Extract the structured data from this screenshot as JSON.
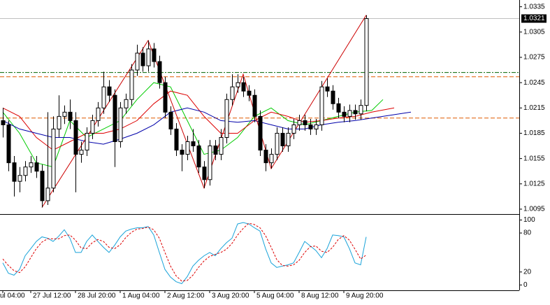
{
  "chart_data": {
    "type": "candlestick",
    "categories": [
      "ul 04:00",
      null,
      null,
      null,
      null,
      "27 Jul 12:00",
      null,
      null,
      null,
      null,
      null,
      null,
      null,
      "28 Jul 20:00",
      null,
      null,
      null,
      null,
      null,
      null,
      null,
      "1 Aug 04:00",
      null,
      null,
      null,
      null,
      null,
      null,
      null,
      "2 Aug 12:00",
      null,
      null,
      null,
      null,
      null,
      null,
      null,
      "3 Aug 20:00",
      null,
      null,
      null,
      null,
      null,
      null,
      null,
      "5 Aug 04:00",
      null,
      null,
      null,
      null,
      null,
      null,
      null,
      "8 Aug 12:00",
      null,
      null,
      null,
      null,
      null,
      null,
      null,
      "9 Aug 20:00",
      null,
      null,
      null,
      null
    ],
    "open": [
      1.02,
      1.0195,
      1.015,
      1.0128,
      1.0135,
      1.0145,
      1.015,
      1.014,
      1.0105,
      1.012,
      1.019,
      1.0205,
      1.021,
      1.02,
      1.016,
      1.0165,
      1.0185,
      1.02,
      1.0215,
      1.024,
      1.023,
      1.0175,
      1.0215,
      1.0225,
      1.026,
      1.028,
      1.0265,
      1.0285,
      1.027,
      1.0245,
      1.021,
      1.019,
      1.0165,
      1.016,
      1.0175,
      1.017,
      1.0145,
      1.013,
      1.017,
      1.016,
      1.018,
      1.0225,
      1.024,
      1.0245,
      1.0235,
      1.023,
      1.0205,
      1.0165,
      1.015,
      1.016,
      1.0185,
      1.017,
      1.0185,
      1.0195,
      1.02,
      1.0195,
      1.019,
      1.0195,
      1.024,
      1.0235,
      1.022,
      1.021,
      1.0205,
      1.0212,
      1.0208,
      1.0218
    ],
    "high": [
      1.0215,
      1.02,
      1.0158,
      1.0145,
      1.0152,
      1.0158,
      1.0158,
      1.0148,
      1.021,
      1.0205,
      1.023,
      1.0218,
      1.0225,
      1.021,
      1.0175,
      1.0192,
      1.0207,
      1.0222,
      1.0258,
      1.0248,
      1.0237,
      1.0222,
      1.0232,
      1.0267,
      1.029,
      1.0287,
      1.0295,
      1.0292,
      1.0277,
      1.0252,
      1.0217,
      1.0197,
      1.0172,
      1.0182,
      1.019,
      1.0177,
      1.0152,
      1.0177,
      1.0177,
      1.019,
      1.0232,
      1.0255,
      1.0255,
      1.0252,
      1.0242,
      1.0237,
      1.0212,
      1.0172,
      1.0167,
      1.0192,
      1.0192,
      1.0192,
      1.0202,
      1.0207,
      1.0207,
      1.0202,
      1.0202,
      1.0247,
      1.025,
      1.0242,
      1.0227,
      1.0217,
      1.0219,
      1.0219,
      1.0225,
      1.0325
    ],
    "low": [
      1.018,
      1.014,
      1.011,
      1.0115,
      1.0128,
      1.0138,
      1.0132,
      1.0097,
      1.01,
      1.0115,
      1.018,
      1.0196,
      1.019,
      1.0115,
      1.015,
      1.0158,
      1.0178,
      1.0193,
      1.0208,
      1.0222,
      1.0145,
      1.0168,
      1.0208,
      1.0218,
      1.0253,
      1.0258,
      1.0258,
      1.0263,
      1.0238,
      1.0203,
      1.0183,
      1.0158,
      1.014,
      1.0153,
      1.0163,
      1.0138,
      1.012,
      1.0123,
      1.0153,
      1.0153,
      1.0173,
      1.0218,
      1.0233,
      1.0228,
      1.0223,
      1.0198,
      1.0158,
      1.014,
      1.0143,
      1.0153,
      1.0163,
      1.0163,
      1.0178,
      1.0188,
      1.0188,
      1.0183,
      1.0183,
      1.0188,
      1.0228,
      1.0213,
      1.0203,
      1.0198,
      1.0198,
      1.0201,
      1.0201,
      1.0211
    ],
    "close": [
      1.0195,
      1.015,
      1.0128,
      1.0135,
      1.0145,
      1.015,
      1.014,
      1.0105,
      1.012,
      1.019,
      1.0205,
      1.021,
      1.02,
      1.016,
      1.0165,
      1.0185,
      1.02,
      1.0215,
      1.024,
      1.023,
      1.0175,
      1.0215,
      1.0225,
      1.026,
      1.028,
      1.0265,
      1.0285,
      1.027,
      1.0245,
      1.021,
      1.019,
      1.0165,
      1.016,
      1.0175,
      1.017,
      1.0145,
      1.013,
      1.017,
      1.016,
      1.018,
      1.0225,
      1.024,
      1.0245,
      1.0235,
      1.023,
      1.0205,
      1.0165,
      1.015,
      1.016,
      1.0185,
      1.017,
      1.0185,
      1.0195,
      1.02,
      1.0195,
      1.019,
      1.0195,
      1.024,
      1.0235,
      1.022,
      1.021,
      1.0205,
      1.0212,
      1.0208,
      1.0218,
      1.0321
    ],
    "ylim": [
      1.009,
      1.0343
    ],
    "yticks": [
      1.0335,
      1.0305,
      1.0275,
      1.0245,
      1.0215,
      1.0185,
      1.0155,
      1.0125,
      1.0095
    ],
    "series": [
      {
        "color": "#00cc00",
        "x": [
          0,
          3,
          6,
          9,
          12,
          15,
          18,
          21,
          24,
          27,
          30,
          33,
          36,
          39,
          42,
          45,
          48,
          51,
          54,
          57,
          60,
          63,
          66,
          68
        ],
        "values": [
          1.021,
          1.0185,
          1.015,
          1.0145,
          1.02,
          1.018,
          1.019,
          1.02,
          1.0225,
          1.0245,
          1.024,
          1.02,
          1.016,
          1.0165,
          1.018,
          1.0205,
          1.0215,
          1.02,
          1.0195,
          1.02,
          1.0205,
          1.021,
          1.0212,
          1.0225
        ]
      },
      {
        "color": "#dd0000",
        "x": [
          0,
          3,
          6,
          9,
          12,
          15,
          18,
          21,
          24,
          27,
          30,
          33,
          36,
          39,
          42,
          45,
          48,
          51,
          54,
          57,
          60,
          63,
          66,
          70
        ],
        "values": [
          1.0215,
          1.0205,
          1.018,
          1.0165,
          1.0175,
          1.0185,
          1.0185,
          1.019,
          1.02,
          1.022,
          1.0235,
          1.023,
          1.0205,
          1.0185,
          1.0185,
          1.02,
          1.021,
          1.0205,
          1.0198,
          1.02,
          1.0203,
          1.0205,
          1.021,
          1.0215
        ]
      },
      {
        "color": "#0000aa",
        "x": [
          0,
          3,
          6,
          9,
          12,
          15,
          18,
          21,
          24,
          27,
          30,
          33,
          36,
          39,
          42,
          45,
          48,
          51,
          54,
          57,
          60,
          63,
          66,
          73
        ],
        "values": [
          1.02,
          1.019,
          1.0185,
          1.018,
          1.018,
          1.0175,
          1.0172,
          1.0178,
          1.0185,
          1.0195,
          1.021,
          1.0215,
          1.021,
          1.02,
          1.0198,
          1.02,
          1.0195,
          1.019,
          1.019,
          1.0195,
          1.0198,
          1.02,
          1.0203,
          1.021
        ]
      },
      {
        "color": "#cc0000",
        "x": [
          7,
          26,
          36,
          43,
          48,
          65
        ],
        "values": [
          1.0097,
          1.0295,
          1.012,
          1.0255,
          1.0143,
          1.0325
        ]
      }
    ],
    "levels": [
      {
        "value": 1.0257,
        "color": "#006600"
      },
      {
        "value": 1.0252,
        "color": "#e05a00"
      },
      {
        "value": 1.0203,
        "color": "#e05a00"
      }
    ],
    "last_price_color": "#000000",
    "indicator": {
      "type": "line",
      "ylim": [
        -5,
        107
      ],
      "yticks": [
        100,
        80,
        20,
        0
      ],
      "series": [
        {
          "color": "#1aa3d9",
          "values": [
            34,
            18,
            15,
            24,
            45,
            56,
            67,
            74,
            72,
            67,
            75,
            85,
            72,
            50,
            50,
            67,
            77,
            67,
            58,
            50,
            61,
            74,
            83,
            86,
            88,
            88,
            90,
            77,
            50,
            24,
            12,
            5,
            2,
            13,
            29,
            38,
            45,
            50,
            45,
            56,
            65,
            72,
            94,
            96,
            94,
            88,
            83,
            56,
            34,
            27,
            29,
            31,
            34,
            50,
            67,
            60,
            53,
            42,
            56,
            77,
            76,
            74,
            56,
            34,
            31,
            74
          ]
        },
        {
          "color": "#dd0000",
          "values": [
            40,
            30,
            22,
            19,
            28,
            42,
            56,
            66,
            71,
            71,
            71,
            76,
            77,
            69,
            57,
            56,
            65,
            70,
            67,
            58,
            56,
            62,
            73,
            81,
            86,
            87,
            89,
            85,
            72,
            50,
            29,
            14,
            6,
            7,
            15,
            27,
            37,
            44,
            47,
            50,
            55,
            64,
            77,
            87,
            95,
            93,
            88,
            76,
            58,
            39,
            30,
            29,
            31,
            38,
            50,
            59,
            60,
            52,
            50,
            58,
            70,
            76,
            69,
            55,
            40,
            46
          ]
        }
      ]
    }
  }
}
